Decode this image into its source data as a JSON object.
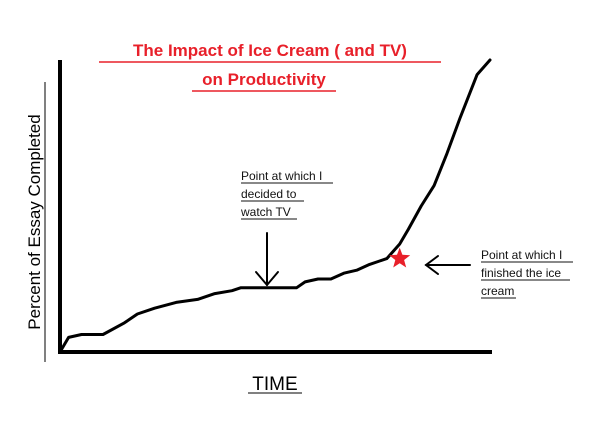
{
  "chart_data": {
    "type": "line",
    "title_lines": [
      "The Impact of Ice Cream  ( and TV)",
      "on Productivity"
    ],
    "xlabel": "TIME",
    "ylabel": "Percent of Essay Completed",
    "grid": false,
    "legend": "none",
    "series": [
      {
        "x": [
          0,
          2,
          5,
          10,
          15,
          18,
          22,
          27,
          32,
          36,
          40,
          42,
          50,
          55,
          57,
          60,
          63,
          66,
          69,
          72,
          74,
          76,
          79,
          81,
          84,
          87,
          90,
          93,
          97,
          100
        ],
        "y": [
          0,
          5,
          6,
          6,
          10,
          13,
          15,
          17,
          18,
          20,
          21,
          22,
          22,
          22,
          24,
          25,
          25,
          27,
          28,
          30,
          31,
          32,
          37,
          42,
          50,
          57,
          68,
          80,
          95,
          100
        ]
      }
    ],
    "annotations": [
      {
        "text_lines": [
          "Point at which I",
          "decided to",
          "watch TV"
        ],
        "x": 48,
        "y": 22
      },
      {
        "text_lines": [
          "Point at which I",
          "finished the ice",
          "cream"
        ],
        "x": 79,
        "y": 32
      }
    ]
  },
  "colors": {
    "title": "#e8202a",
    "line": "#000000",
    "marker": "#e8202a"
  },
  "marker_icon": "star-icon"
}
